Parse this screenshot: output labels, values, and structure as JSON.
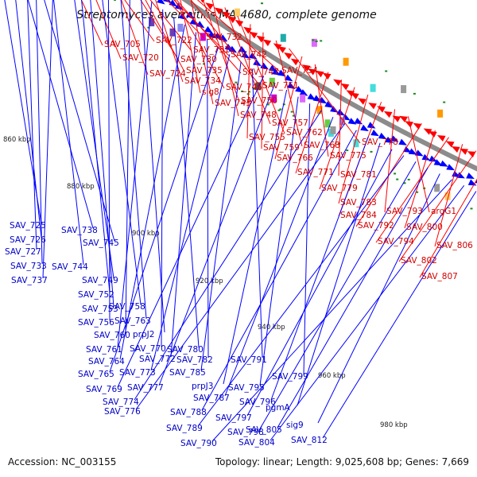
{
  "title": "Streptomyces avermitilis MA-4680, complete genome",
  "footer": {
    "accession": "Accession: NC_003155",
    "summary": "Topology: linear; Length: 9,025,608 bp; Genes: 7,669"
  },
  "colors": {
    "forward_genes": "#ff0000",
    "reverse_genes": "#0000ff",
    "backbone": "#8c8c8c",
    "rna_marks": "#1a8a1a"
  },
  "kbp_markers": [
    "860 kbp",
    "880 kbp",
    "900 kbp",
    "920 kbp",
    "940 kbp",
    "960 kbp",
    "980 kbp"
  ],
  "forward_labels": [
    "SAV_705",
    "SAV_722",
    "SAV_732",
    "SAV_720",
    "SAV_731",
    "SAV_742",
    "SAV_730",
    "SAV_724",
    "SAV_735",
    "SAV_747",
    "SAV_754",
    "SAV_734",
    "SAV_746",
    "SAV_751",
    "sig8",
    "SAV_743",
    "SAV_750",
    "SAV_748",
    "SAV_757",
    "SAV_762",
    "SAV_755",
    "SAV_759",
    "SAV_768",
    "SAV_778",
    "SAV_766",
    "SAV_775",
    "SAV_771",
    "SAV_781",
    "SAV_779",
    "SAV_783",
    "SAV_784",
    "SAV_793",
    "argG1",
    "SAV_792",
    "SAV_800",
    "SAV_794",
    "SAV_806",
    "SAV_802",
    "SAV_807"
  ],
  "reverse_labels": [
    "SAV_725",
    "SAV_738",
    "SAV_726",
    "SAV_745",
    "SAV_727",
    "SAV_733",
    "SAV_744",
    "SAV_737",
    "SAV_749",
    "SAV_752",
    "SAV_753",
    "SAV_758",
    "SAV_756",
    "SAV_763",
    "SAV_760",
    "prpJ2",
    "SAV_761",
    "SAV_770",
    "SAV_780",
    "SAV_764",
    "SAV_772",
    "SAV_782",
    "SAV_765",
    "SAV_773",
    "SAV_785",
    "SAV_791",
    "SAV_769",
    "SAV_777",
    "prpJ3",
    "SAV_795",
    "SAV_799",
    "SAV_774",
    "SAV_787",
    "SAV_776",
    "SAV_788",
    "SAV_796",
    "pgmA",
    "SAV_797",
    "SAV_789",
    "SAV_798",
    "SAV_805",
    "sig9",
    "SAV_790",
    "SAV_804",
    "SAV_812"
  ]
}
